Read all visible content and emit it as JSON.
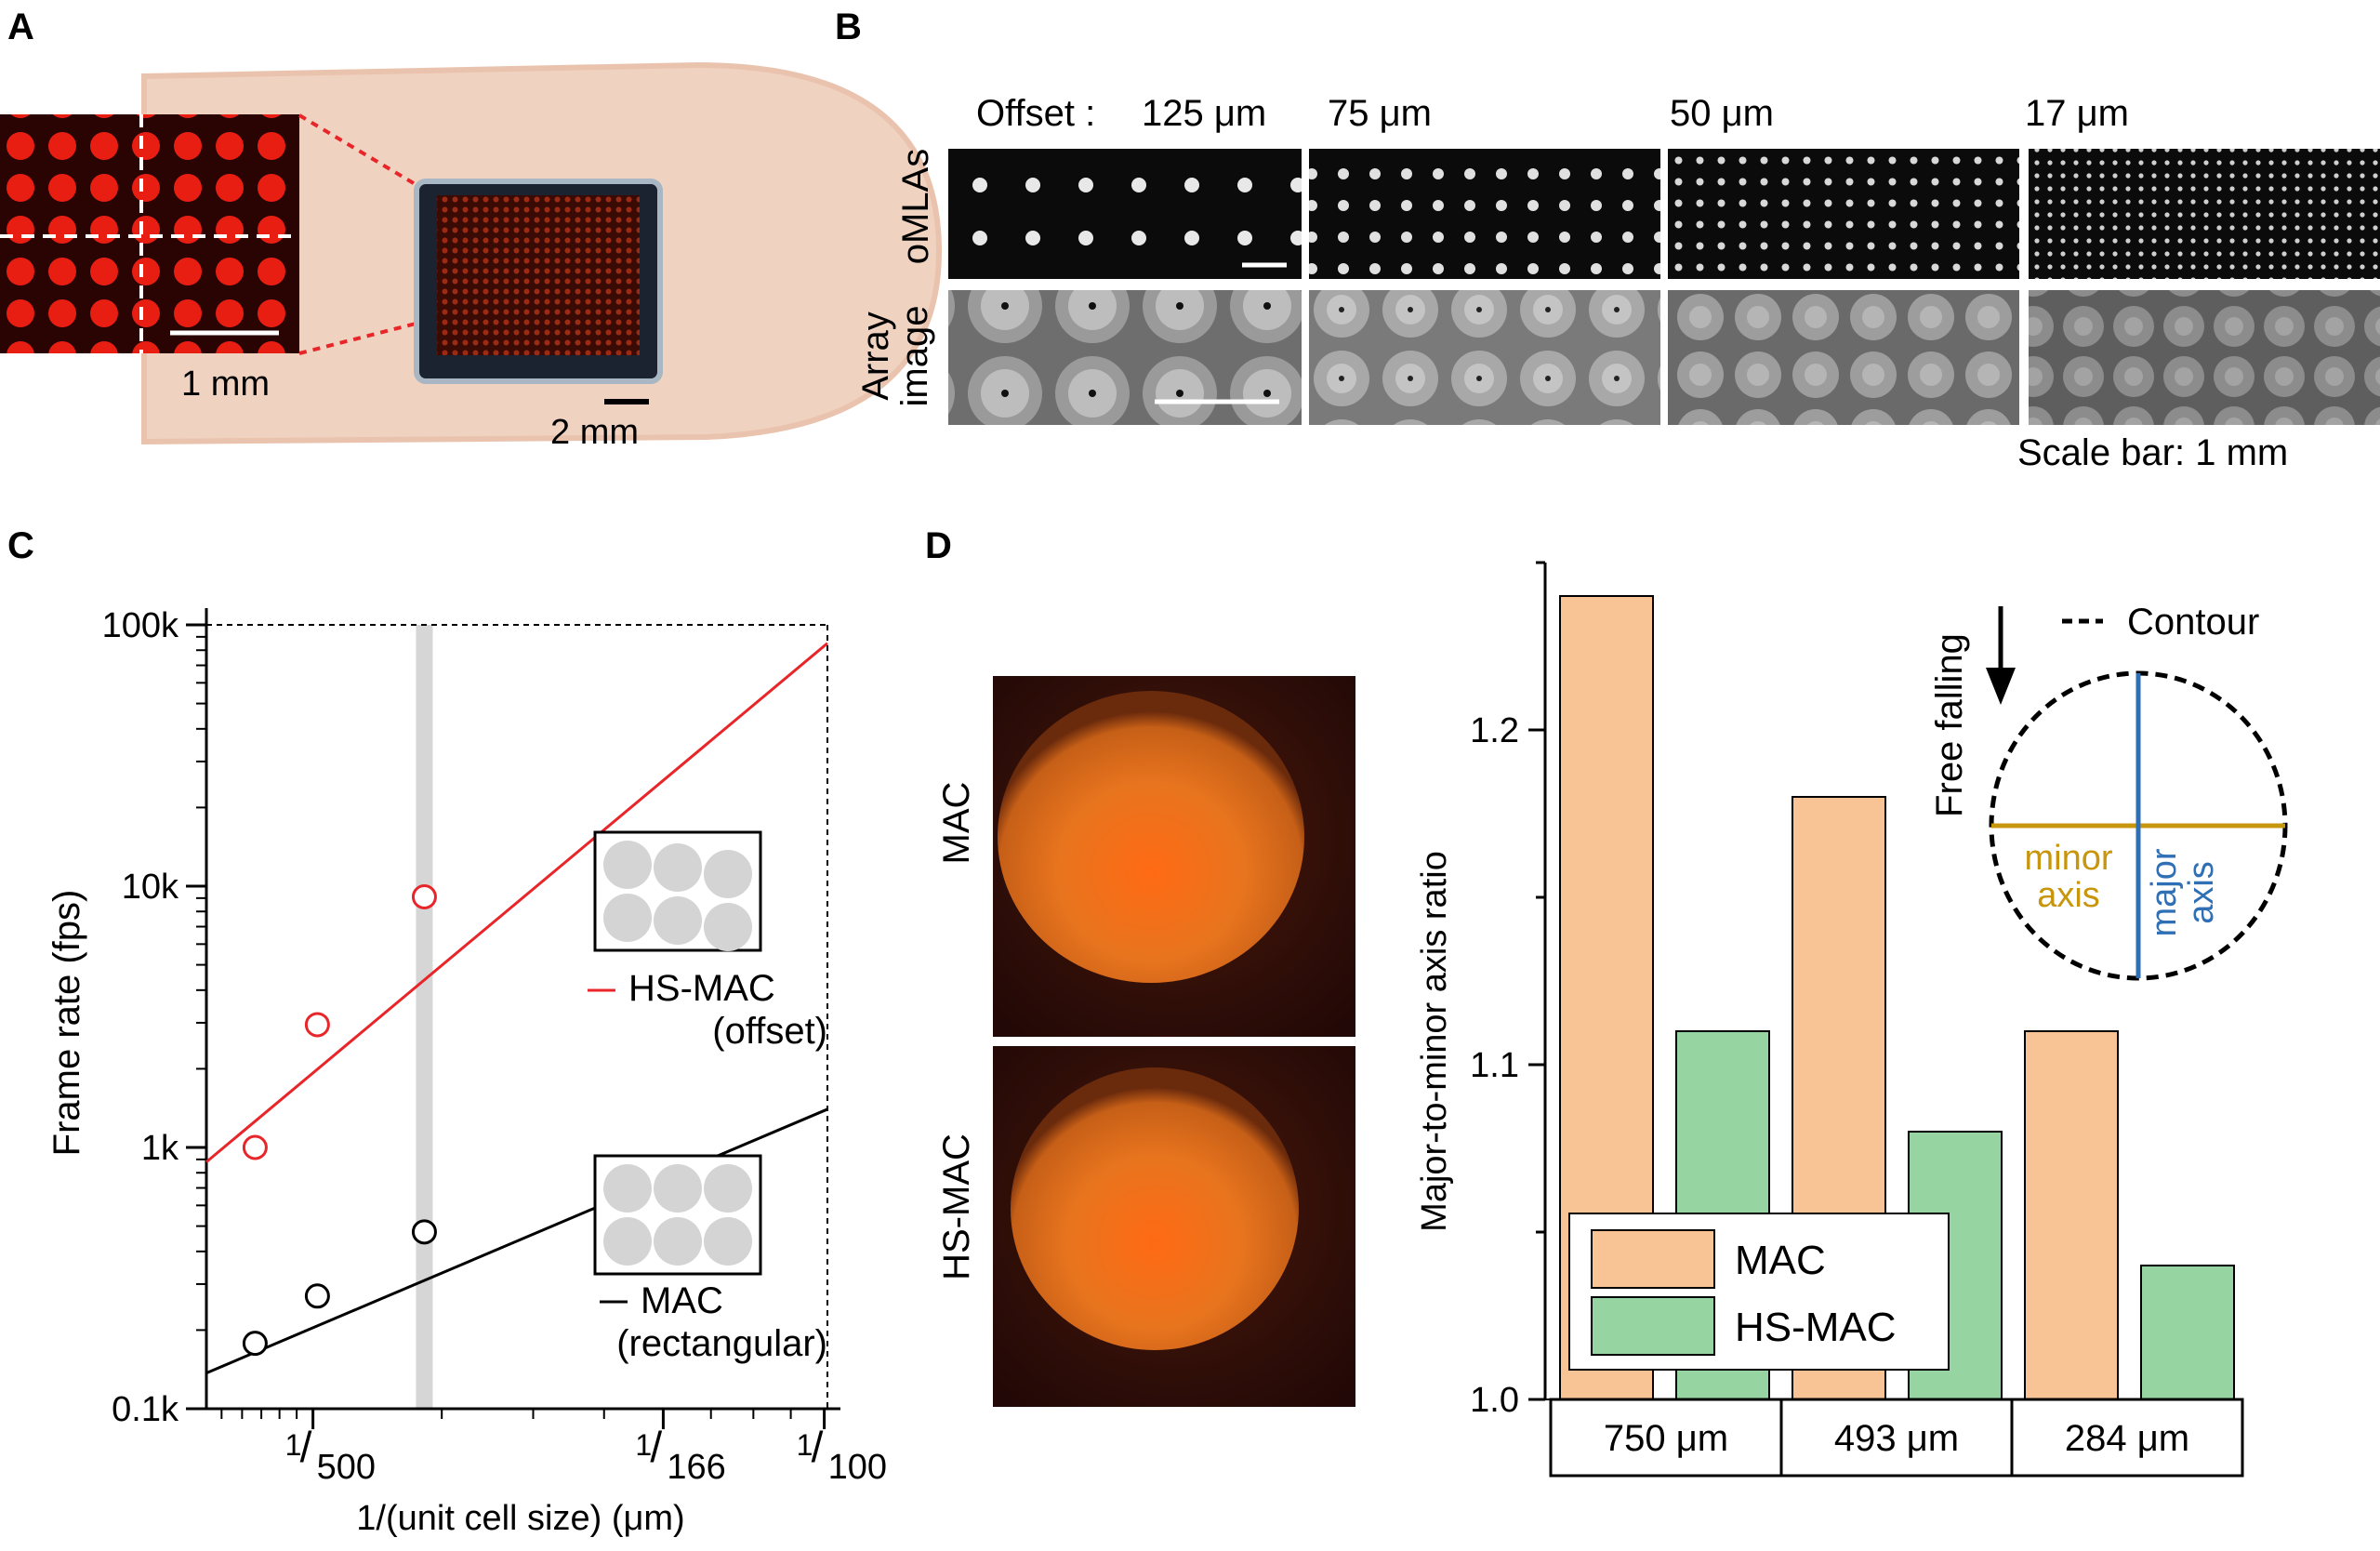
{
  "panels": {
    "a_label": "A",
    "b_label": "B",
    "c_label": "C",
    "d_label": "D"
  },
  "panel_a": {
    "scale_small": "1 mm",
    "scale_large": "2 mm"
  },
  "panel_b": {
    "offset_label": "Offset :",
    "offsets": [
      "125 μm",
      "75 μm",
      "50 μm",
      "17 μm"
    ],
    "row_top": "oMLAs",
    "row_bottom_1": "Array",
    "row_bottom_2": "image",
    "scale_note": "Scale bar: 1 mm"
  },
  "panel_d_images": {
    "label_top": "MAC",
    "label_bottom": "HS-MAC"
  },
  "colors": {
    "red_line": "#e8262a",
    "black_line": "#000000",
    "mac_bar": "#f9c495",
    "hsmac_bar": "#96d5a1",
    "minor_axis": "#c8960c",
    "major_axis": "#2f6fb5",
    "gray_band": "#d6d6d6"
  },
  "chart_data": [
    {
      "type": "line",
      "title": "",
      "xlabel": "1/(unit cell size) (μm)",
      "ylabel": "Frame rate (fps)",
      "x_scale": "log",
      "y_scale": "log",
      "xlim": [
        0.00143,
        0.0101
      ],
      "ylim": [
        100,
        100000
      ],
      "xticks": [
        {
          "pre": "1",
          "post": "500",
          "value": 0.002
        },
        {
          "pre": "1",
          "post": "166",
          "value": 0.006024
        },
        {
          "pre": "1",
          "post": "100",
          "value": 0.01
        }
      ],
      "yticks": [
        {
          "label": "0.1k",
          "value": 100
        },
        {
          "label": "1k",
          "value": 1000
        },
        {
          "label": "10k",
          "value": 10000
        },
        {
          "label": "100k",
          "value": 100000
        }
      ],
      "highlight_x": 0.00284,
      "series": [
        {
          "name": "HS-MAC",
          "name2": "(offset)",
          "color": "#e8262a",
          "marker": "open-circle",
          "points": [
            {
              "x": 0.001667,
              "y": 1000
            },
            {
              "x": 0.002028,
              "y": 2950
            },
            {
              "x": 0.00284,
              "y": 9100
            }
          ],
          "fit": [
            [
              0.00143,
              880
            ],
            [
              0.0101,
              85000
            ]
          ]
        },
        {
          "name": "MAC",
          "name2": "(rectangular)",
          "color": "#000000",
          "marker": "open-circle",
          "points": [
            {
              "x": 0.001667,
              "y": 178
            },
            {
              "x": 0.002028,
              "y": 270
            },
            {
              "x": 0.00284,
              "y": 475
            }
          ],
          "fit": [
            [
              0.00143,
              137
            ],
            [
              0.0101,
              1400
            ]
          ]
        }
      ]
    },
    {
      "type": "bar",
      "title": "",
      "xlabel": "",
      "ylabel": "Major-to-minor axis ratio",
      "ylim": [
        1.0,
        1.25
      ],
      "yticks": [
        "1.0",
        "1.1",
        "1.2"
      ],
      "categories": [
        "750 μm",
        "493 μm",
        "284 μm"
      ],
      "series": [
        {
          "name": "MAC",
          "values": [
            1.24,
            1.18,
            1.11
          ]
        },
        {
          "name": "HS-MAC",
          "values": [
            1.11,
            1.08,
            1.04
          ]
        }
      ],
      "inset": {
        "contour_label": "Contour",
        "falling_label": "Free falling",
        "minor_1": "minor",
        "minor_2": "axis",
        "major_1": "major",
        "major_2": "axis"
      }
    }
  ]
}
